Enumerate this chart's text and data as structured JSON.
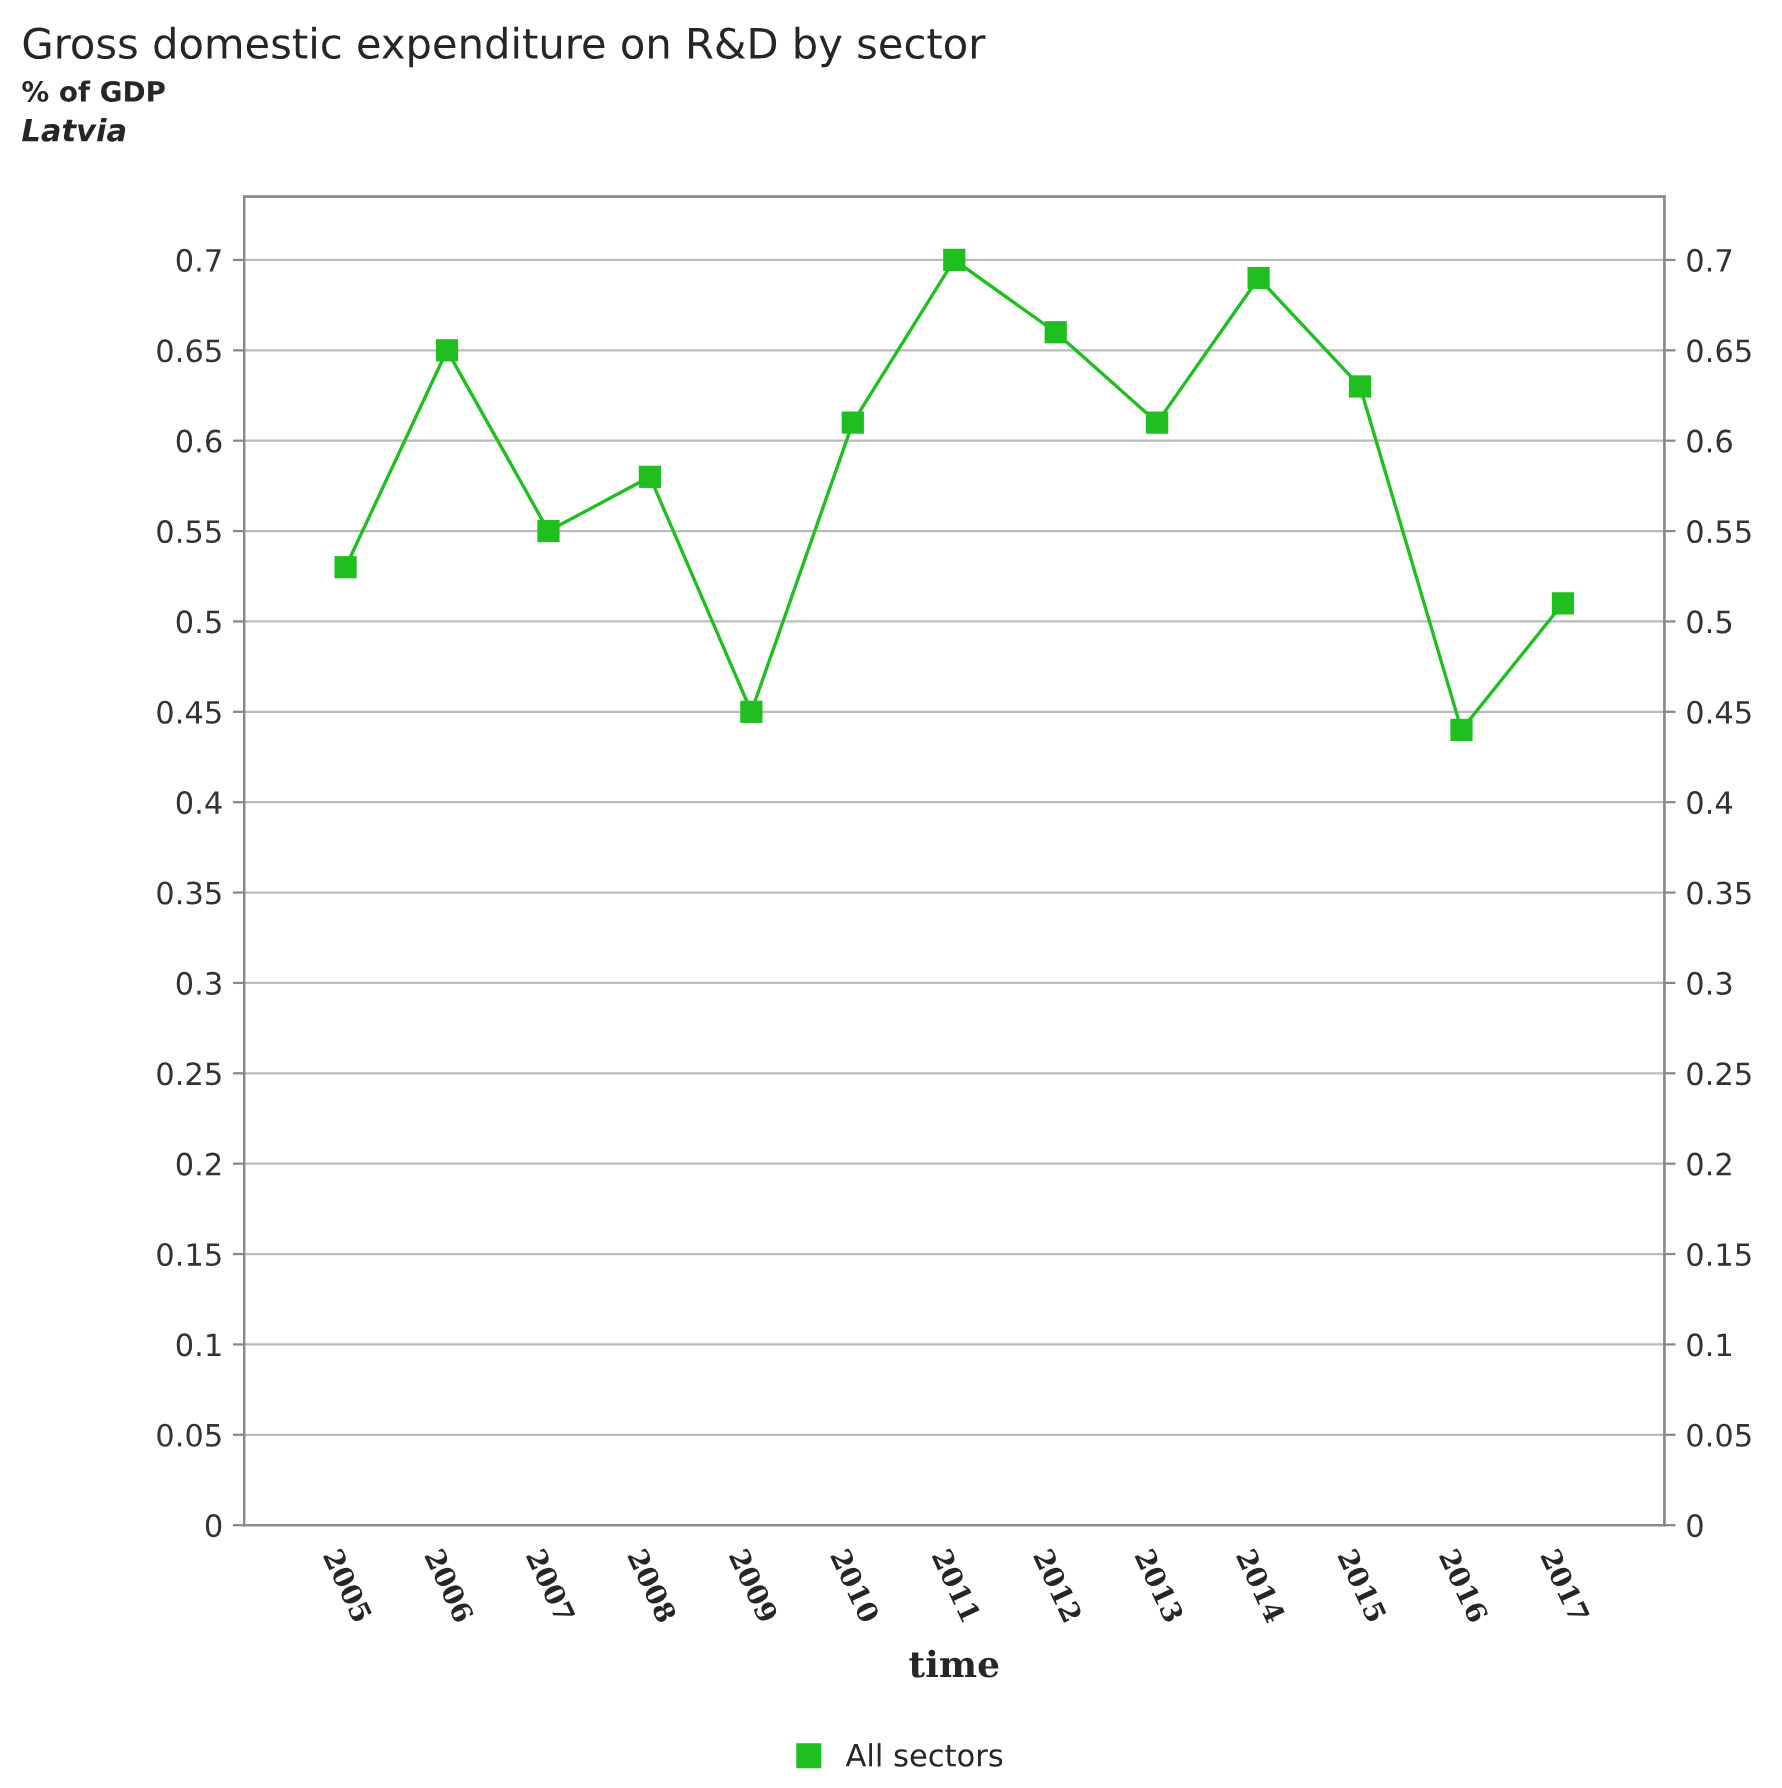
{
  "chart_data": {
    "type": "line",
    "title": "Gross domestic expenditure on R&D by sector",
    "subtitle": "% of GDP",
    "annotations": [
      "Latvia"
    ],
    "xlabel": "time",
    "categories": [
      "2005",
      "2006",
      "2007",
      "2008",
      "2009",
      "2010",
      "2011",
      "2012",
      "2013",
      "2014",
      "2015",
      "2016",
      "2017"
    ],
    "series": [
      {
        "name": "All sectors",
        "color": "#1fbf1f",
        "values": [
          0.53,
          0.65,
          0.55,
          0.58,
          0.45,
          0.61,
          0.7,
          0.66,
          0.61,
          0.69,
          0.63,
          0.44,
          0.51
        ]
      }
    ],
    "ylim": [
      0,
      0.735
    ],
    "yticks": [
      0,
      0.05,
      0.1,
      0.15,
      0.2,
      0.25,
      0.3,
      0.35,
      0.4,
      0.45,
      0.5,
      0.55,
      0.6,
      0.65,
      0.7
    ],
    "y2lim": [
      0,
      0.735
    ],
    "y2ticks": [
      0,
      0.05,
      0.1,
      0.15,
      0.2,
      0.25,
      0.3,
      0.35,
      0.4,
      0.45,
      0.5,
      0.55,
      0.6,
      0.65,
      0.7
    ],
    "grid": "y",
    "legend": "bottom",
    "marker": "square",
    "line_style": "solid"
  }
}
